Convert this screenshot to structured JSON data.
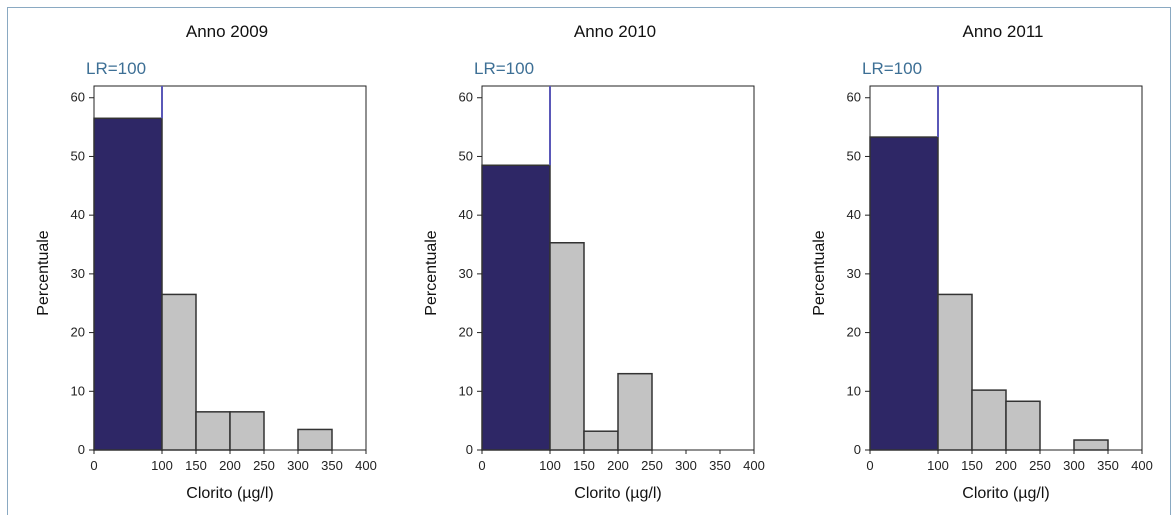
{
  "chart_data": [
    {
      "type": "bar",
      "title": "Anno 2009",
      "reference_line": {
        "label": "LR=100",
        "x": 100
      },
      "xlabel": "Clorito (µg/l)",
      "ylabel": "Percentuale",
      "xlim": [
        0,
        400
      ],
      "ylim": [
        0,
        62
      ],
      "x_ticks": [
        "0",
        "100",
        "150",
        "200",
        "250",
        "300",
        "350",
        "400"
      ],
      "y_ticks": [
        "0",
        "10",
        "20",
        "30",
        "40",
        "50",
        "60"
      ],
      "bins": [
        {
          "from": 0,
          "to": 100,
          "value": 56.5,
          "highlight": true
        },
        {
          "from": 100,
          "to": 150,
          "value": 26.5,
          "highlight": false
        },
        {
          "from": 150,
          "to": 200,
          "value": 6.5,
          "highlight": false
        },
        {
          "from": 200,
          "to": 250,
          "value": 6.5,
          "highlight": false
        },
        {
          "from": 250,
          "to": 300,
          "value": 0,
          "highlight": false
        },
        {
          "from": 300,
          "to": 350,
          "value": 3.5,
          "highlight": false
        },
        {
          "from": 350,
          "to": 400,
          "value": 0,
          "highlight": false
        }
      ]
    },
    {
      "type": "bar",
      "title": "Anno 2010",
      "reference_line": {
        "label": "LR=100",
        "x": 100
      },
      "xlabel": "Clorito (µg/l)",
      "ylabel": "Percentuale",
      "xlim": [
        0,
        400
      ],
      "ylim": [
        0,
        62
      ],
      "x_ticks": [
        "0",
        "100",
        "150",
        "200",
        "250",
        "300",
        "350",
        "400"
      ],
      "y_ticks": [
        "0",
        "10",
        "20",
        "30",
        "40",
        "50",
        "60"
      ],
      "bins": [
        {
          "from": 0,
          "to": 100,
          "value": 48.5,
          "highlight": true
        },
        {
          "from": 100,
          "to": 150,
          "value": 35.3,
          "highlight": false
        },
        {
          "from": 150,
          "to": 200,
          "value": 3.2,
          "highlight": false
        },
        {
          "from": 200,
          "to": 250,
          "value": 13,
          "highlight": false
        },
        {
          "from": 250,
          "to": 300,
          "value": 0,
          "highlight": false
        },
        {
          "from": 300,
          "to": 350,
          "value": 0,
          "highlight": false
        },
        {
          "from": 350,
          "to": 400,
          "value": 0,
          "highlight": false
        }
      ]
    },
    {
      "type": "bar",
      "title": "Anno 2011",
      "reference_line": {
        "label": "LR=100",
        "x": 100
      },
      "xlabel": "Clorito (µg/l)",
      "ylabel": "Percentuale",
      "xlim": [
        0,
        400
      ],
      "ylim": [
        0,
        62
      ],
      "x_ticks": [
        "0",
        "100",
        "150",
        "200",
        "250",
        "300",
        "350",
        "400"
      ],
      "y_ticks": [
        "0",
        "10",
        "20",
        "30",
        "40",
        "50",
        "60"
      ],
      "bins": [
        {
          "from": 0,
          "to": 100,
          "value": 53.3,
          "highlight": true
        },
        {
          "from": 100,
          "to": 150,
          "value": 26.5,
          "highlight": false
        },
        {
          "from": 150,
          "to": 200,
          "value": 10.2,
          "highlight": false
        },
        {
          "from": 200,
          "to": 250,
          "value": 8.3,
          "highlight": false
        },
        {
          "from": 250,
          "to": 300,
          "value": 0,
          "highlight": false
        },
        {
          "from": 300,
          "to": 350,
          "value": 1.7,
          "highlight": false
        },
        {
          "from": 350,
          "to": 400,
          "value": 0,
          "highlight": false
        }
      ]
    }
  ],
  "colors": {
    "highlight_bar": "#2e2766",
    "bar": "#c3c3c3",
    "bar_stroke": "#333333",
    "reference_line": "#5a58b8",
    "lr_label": "#3d6f95",
    "axis": "#222222"
  }
}
